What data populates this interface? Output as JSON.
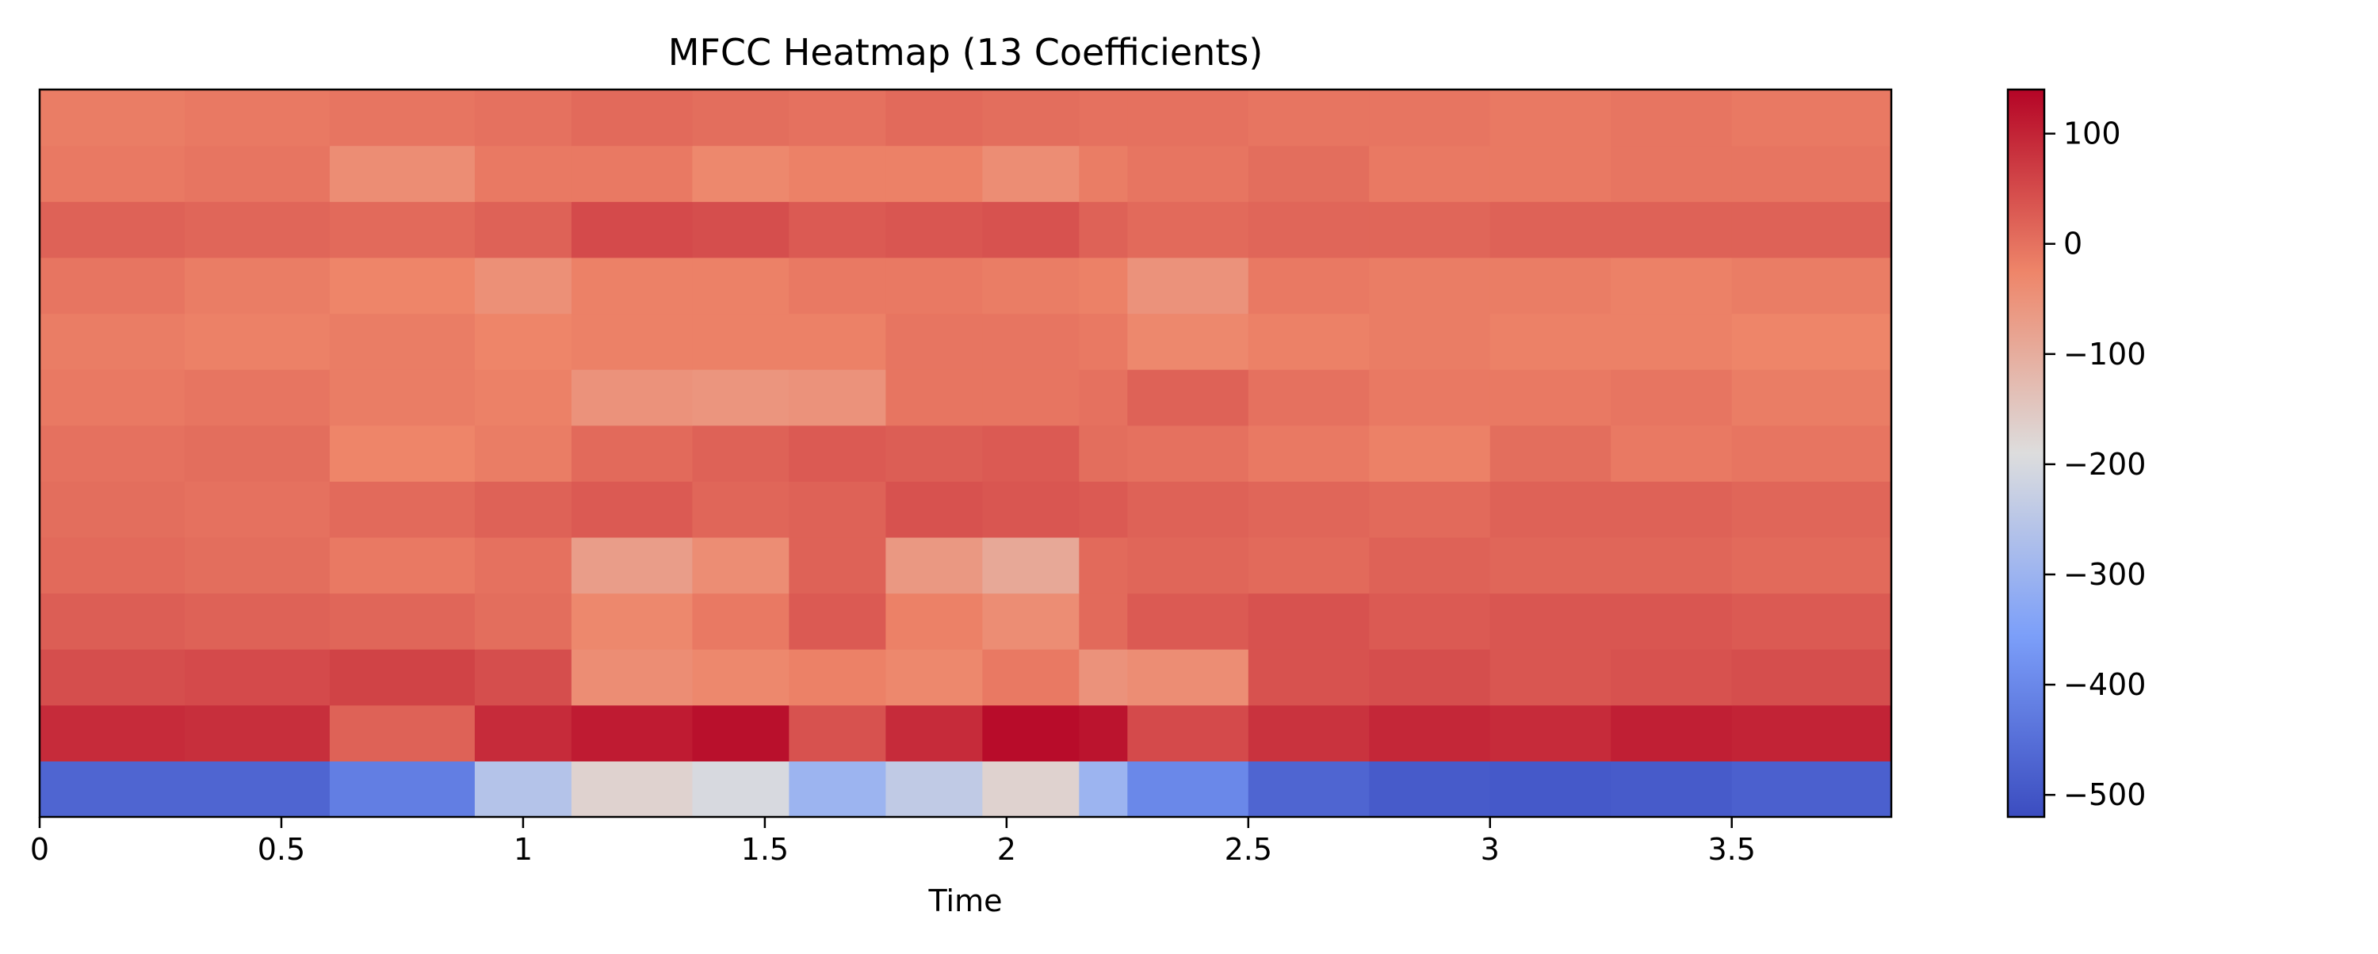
{
  "chart_data": {
    "type": "heatmap",
    "title": "MFCC Heatmap (13 Coefficients)",
    "xlabel": "Time",
    "ylabel": "",
    "xlim": [
      0,
      3.83
    ],
    "x_ticks": [
      0,
      0.5,
      1,
      1.5,
      2,
      2.5,
      3,
      3.5
    ],
    "x_tick_labels": [
      "0",
      "0.5",
      "1",
      "1.5",
      "2",
      "2.5",
      "3",
      "3.5"
    ],
    "n_coefficients": 13,
    "coefficient_order": "row 0 (bottom) = MFCC 0 ... row 12 (top) = MFCC 12",
    "colormap": "coolwarm",
    "colorbar": {
      "vmin": -520,
      "vmax": 140,
      "ticks": [
        100,
        0,
        -100,
        -200,
        -300,
        -400,
        -500
      ],
      "tick_labels": [
        "100",
        "0",
        "−100",
        "−200",
        "−300",
        "−400",
        "−500"
      ]
    },
    "time_segments": [
      0,
      0.3,
      0.6,
      0.9,
      1.1,
      1.35,
      1.55,
      1.75,
      1.95,
      2.15,
      2.25,
      2.5,
      2.75,
      3.0,
      3.25,
      3.5,
      3.83
    ],
    "values": [
      [
        -470,
        -470,
        -420,
        -260,
        -170,
        -200,
        -300,
        -240,
        -170,
        -300,
        -400,
        -470,
        -490,
        -495,
        -490,
        -480
      ],
      [
        90,
        85,
        20,
        90,
        110,
        125,
        40,
        90,
        130,
        120,
        50,
        80,
        95,
        90,
        105,
        100
      ],
      [
        45,
        50,
        60,
        45,
        -40,
        -30,
        -20,
        -30,
        -10,
        -50,
        -40,
        40,
        45,
        35,
        40,
        45
      ],
      [
        25,
        20,
        15,
        5,
        -30,
        -10,
        30,
        -20,
        -40,
        10,
        30,
        40,
        30,
        35,
        35,
        30
      ],
      [
        10,
        5,
        -10,
        0,
        -70,
        -40,
        20,
        -60,
        -90,
        10,
        15,
        10,
        20,
        15,
        15,
        10
      ],
      [
        5,
        0,
        10,
        20,
        30,
        15,
        20,
        40,
        35,
        30,
        20,
        15,
        10,
        20,
        20,
        15
      ],
      [
        0,
        5,
        -25,
        -15,
        10,
        20,
        30,
        25,
        30,
        5,
        0,
        -10,
        -20,
        5,
        -10,
        -5
      ],
      [
        -10,
        -5,
        -15,
        -20,
        -50,
        -55,
        -50,
        -5,
        -5,
        0,
        20,
        0,
        -10,
        -10,
        -5,
        -15
      ],
      [
        -15,
        -20,
        -15,
        -25,
        -20,
        -20,
        -20,
        -5,
        -5,
        -10,
        -30,
        -20,
        -15,
        -20,
        -20,
        -25
      ],
      [
        -5,
        -15,
        -25,
        -45,
        -20,
        -20,
        -10,
        -10,
        -15,
        -20,
        -50,
        -10,
        -15,
        -15,
        -20,
        -15
      ],
      [
        20,
        15,
        10,
        20,
        50,
        45,
        30,
        35,
        40,
        20,
        10,
        15,
        15,
        20,
        20,
        20
      ],
      [
        -10,
        -5,
        -40,
        -10,
        -10,
        -30,
        -20,
        -20,
        -40,
        -15,
        -5,
        5,
        -10,
        -10,
        -5,
        -5
      ],
      [
        -15,
        -10,
        -5,
        0,
        10,
        5,
        0,
        10,
        5,
        0,
        0,
        -5,
        -5,
        -10,
        -5,
        -10
      ]
    ]
  }
}
